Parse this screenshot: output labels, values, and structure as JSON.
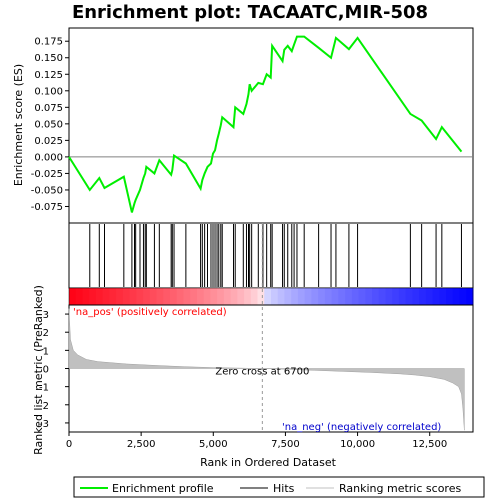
{
  "chart_data": {
    "type": "line",
    "title": "Enrichment plot: TACAATC,MIR-508",
    "top_panel": {
      "ylabel": "Enrichment score (ES)",
      "ylim": [
        -0.1,
        0.195
      ],
      "yticks": [
        -0.075,
        -0.05,
        -0.025,
        0.0,
        0.025,
        0.05,
        0.075,
        0.1,
        0.125,
        0.15,
        0.175
      ],
      "ytick_labels": [
        "-0.075",
        "-0.050",
        "-0.025",
        "0.000",
        "0.025",
        "0.050",
        "0.075",
        "0.100",
        "0.125",
        "0.150",
        "0.175"
      ],
      "series": [
        {
          "name": "Enrichment profile",
          "color": "#00ee00",
          "x": [
            0,
            720,
            1050,
            1230,
            1900,
            2180,
            2270,
            2310,
            2460,
            2580,
            2640,
            2680,
            2960,
            3130,
            3540,
            3580,
            3640,
            4050,
            4560,
            4620,
            4700,
            4800,
            4920,
            4990,
            5060,
            5130,
            5190,
            5260,
            5310,
            5700,
            5760,
            6040,
            6150,
            6220,
            6260,
            6330,
            6560,
            6720,
            6850,
            6990,
            7040,
            7400,
            7460,
            7580,
            7720,
            7800,
            7900,
            8150,
            8650,
            9080,
            9250,
            9700,
            10000,
            11830,
            12220,
            12720,
            12920,
            13600
          ],
          "y": [
            0.0,
            -0.05,
            -0.032,
            -0.047,
            -0.03,
            -0.084,
            -0.07,
            -0.065,
            -0.05,
            -0.032,
            -0.025,
            -0.015,
            -0.025,
            -0.005,
            -0.027,
            -0.02,
            0.002,
            -0.01,
            -0.048,
            -0.035,
            -0.025,
            -0.015,
            -0.01,
            0.005,
            0.01,
            0.025,
            0.035,
            0.048,
            0.06,
            0.045,
            0.075,
            0.065,
            0.08,
            0.095,
            0.11,
            0.1,
            0.112,
            0.11,
            0.125,
            0.12,
            0.168,
            0.145,
            0.162,
            0.168,
            0.16,
            0.17,
            0.182,
            0.182,
            0.165,
            0.15,
            0.18,
            0.163,
            0.18,
            0.065,
            0.055,
            0.027,
            0.045,
            0.008
          ]
        }
      ]
    },
    "hits_panel": {
      "label": "Hits",
      "hit_positions": [
        720,
        1050,
        1230,
        1900,
        2180,
        2270,
        2310,
        2460,
        2580,
        2640,
        2680,
        2960,
        3130,
        3540,
        3580,
        3640,
        4050,
        4560,
        4620,
        4700,
        4800,
        4920,
        4990,
        5060,
        5130,
        5190,
        5260,
        5310,
        5700,
        5760,
        6040,
        6150,
        6220,
        6260,
        6330,
        6560,
        6720,
        6850,
        6990,
        7040,
        7400,
        7460,
        7580,
        7720,
        7800,
        7900,
        8150,
        8650,
        9080,
        9250,
        9700,
        10000,
        11830,
        12220,
        12720,
        12920,
        13600
      ]
    },
    "bottom_panel": {
      "ylabel": "Ranked list metric (PreRanked)",
      "xlabel": "Rank in Ordered Dataset",
      "ylim": [
        -3.5,
        3.5
      ],
      "yticks": [
        -3,
        -2,
        -1,
        0,
        1,
        2,
        3
      ],
      "xlim": [
        0,
        14000
      ],
      "xticks": [
        0,
        2500,
        5000,
        7500,
        10000,
        12500
      ],
      "xtick_labels": [
        "0",
        "2,500",
        "5,000",
        "7,500",
        "10,000",
        "12,500"
      ],
      "metric_curve": {
        "x": [
          0,
          50,
          150,
          300,
          600,
          1000,
          2000,
          3000,
          4000,
          5000,
          6000,
          6700,
          7500,
          8500,
          9500,
          10500,
          11500,
          12000,
          12500,
          13000,
          13300,
          13500,
          13600,
          13650,
          13700
        ],
        "y": [
          3.3,
          1.6,
          1.0,
          0.75,
          0.5,
          0.38,
          0.25,
          0.17,
          0.1,
          0.05,
          0.02,
          0.0,
          -0.04,
          -0.1,
          -0.16,
          -0.22,
          -0.3,
          -0.36,
          -0.45,
          -0.6,
          -0.8,
          -1.0,
          -1.4,
          -2.2,
          -3.4
        ]
      },
      "zero_cross": 6700,
      "zero_cross_label": "Zero cross at 6700",
      "pos_label": "'na_pos' (positively correlated)",
      "neg_label": "'na_neg' (negatively correlated)"
    },
    "legend": [
      {
        "label": "Enrichment profile",
        "color": "#00ee00"
      },
      {
        "label": "Hits",
        "color": "#000000"
      },
      {
        "label": "Ranking metric scores",
        "color": "#c0c0c0"
      }
    ],
    "colors": {
      "pos_strong": "#ff0000",
      "neg_strong": "#0000ff",
      "axis": "#000000",
      "metric_fill": "#c0c0c0",
      "pos_label": "#ff0000",
      "neg_label": "#0000cc"
    }
  }
}
